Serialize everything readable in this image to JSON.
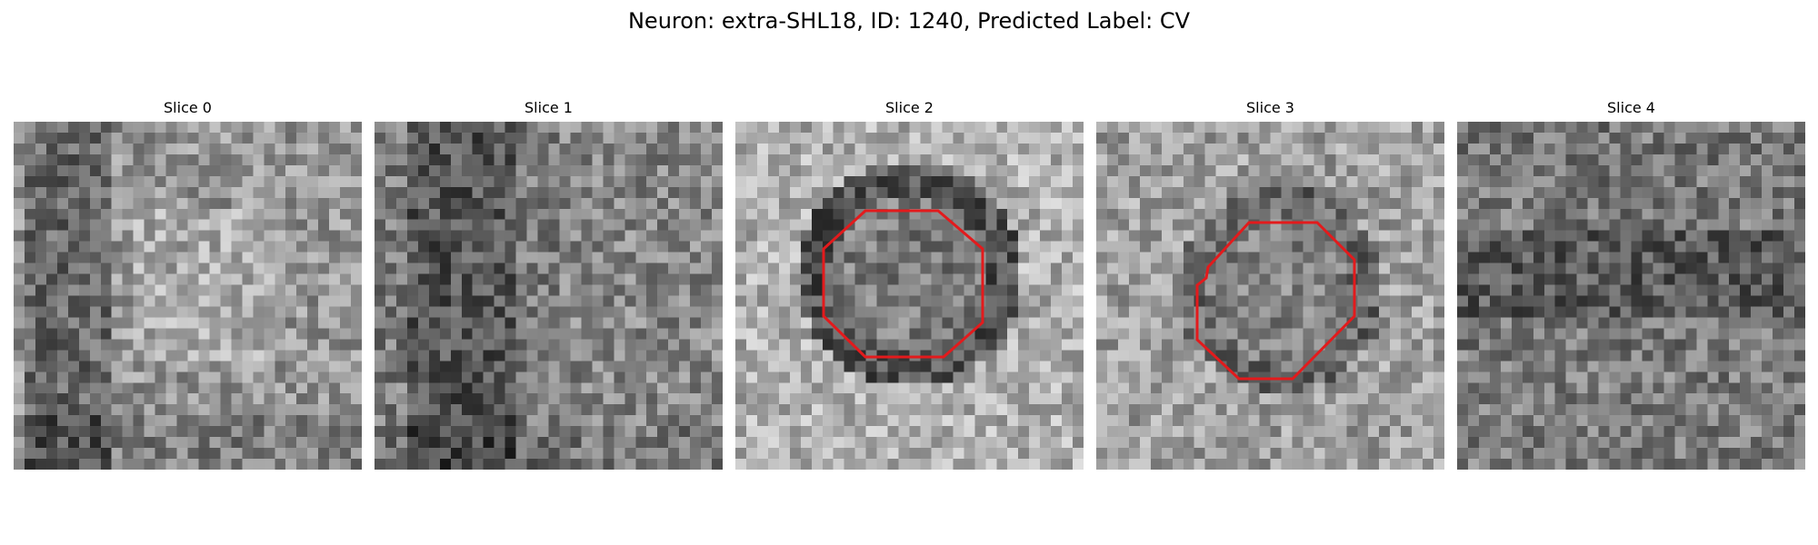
{
  "figure": {
    "title": "Neuron: extra-SHL18, ID: 1240, Predicted Label: CV",
    "slices": [
      {
        "title": "Slice 0",
        "has_contour": false
      },
      {
        "title": "Slice 1",
        "has_contour": false
      },
      {
        "title": "Slice 2",
        "has_contour": true
      },
      {
        "title": "Slice 3",
        "has_contour": true
      },
      {
        "title": "Slice 4",
        "has_contour": false
      }
    ],
    "contour_color": "#e31a1c",
    "colormap": "gray"
  }
}
